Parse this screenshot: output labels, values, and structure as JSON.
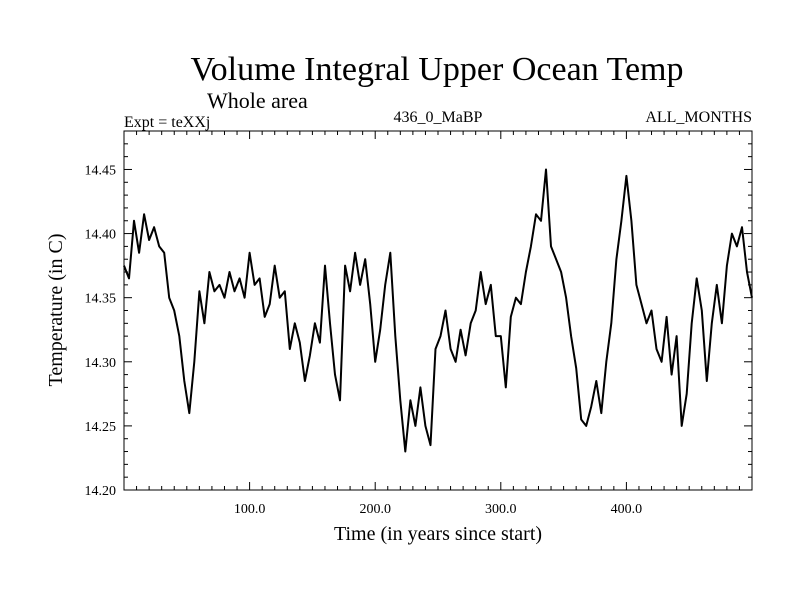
{
  "chart_data": {
    "type": "line",
    "title": "Volume Integral Upper Ocean Temp",
    "subtitle": "Whole area",
    "info_left": "Expt = teXXj",
    "info_center": "436_0_MaBP",
    "info_right": "ALL_MONTHS",
    "xlabel": "Time (in years since start)",
    "ylabel": "Temperature (in C)",
    "xlim": [
      0,
      500
    ],
    "ylim": [
      14.2,
      14.48
    ],
    "xticks": [
      100,
      200,
      300,
      400
    ],
    "xtick_labels": [
      "100.0",
      "200.0",
      "300.0",
      "400.0"
    ],
    "yticks": [
      14.2,
      14.25,
      14.3,
      14.35,
      14.4,
      14.45
    ],
    "ytick_labels": [
      "14.20",
      "14.25",
      "14.30",
      "14.35",
      "14.40",
      "14.45"
    ],
    "grid": false,
    "series": [
      {
        "name": "Volume Integral Upper Ocean Temp",
        "x": [
          0,
          4,
          8,
          12,
          16,
          20,
          24,
          28,
          32,
          36,
          40,
          44,
          48,
          52,
          56,
          60,
          64,
          68,
          72,
          76,
          80,
          84,
          88,
          92,
          96,
          100,
          104,
          108,
          112,
          116,
          120,
          124,
          128,
          132,
          136,
          140,
          144,
          148,
          152,
          156,
          160,
          164,
          168,
          172,
          176,
          180,
          184,
          188,
          192,
          196,
          200,
          204,
          208,
          212,
          216,
          220,
          224,
          228,
          232,
          236,
          240,
          244,
          248,
          252,
          256,
          260,
          264,
          268,
          272,
          276,
          280,
          284,
          288,
          292,
          296,
          300,
          304,
          308,
          312,
          316,
          320,
          324,
          328,
          332,
          336,
          340,
          344,
          348,
          352,
          356,
          360,
          364,
          368,
          372,
          376,
          380,
          384,
          388,
          392,
          396,
          400,
          404,
          408,
          412,
          416,
          420,
          424,
          428,
          432,
          436,
          440,
          444,
          448,
          452,
          456,
          460,
          464,
          468,
          472,
          476,
          480,
          484,
          488,
          492,
          496,
          500
        ],
        "values": [
          14.375,
          14.365,
          14.41,
          14.385,
          14.415,
          14.395,
          14.405,
          14.39,
          14.385,
          14.35,
          14.34,
          14.32,
          14.285,
          14.26,
          14.3,
          14.355,
          14.33,
          14.37,
          14.355,
          14.36,
          14.35,
          14.37,
          14.355,
          14.365,
          14.35,
          14.385,
          14.36,
          14.365,
          14.335,
          14.345,
          14.375,
          14.35,
          14.355,
          14.31,
          14.33,
          14.315,
          14.285,
          14.305,
          14.33,
          14.315,
          14.375,
          14.33,
          14.29,
          14.27,
          14.375,
          14.355,
          14.385,
          14.36,
          14.38,
          14.345,
          14.3,
          14.325,
          14.36,
          14.385,
          14.32,
          14.27,
          14.23,
          14.27,
          14.25,
          14.28,
          14.25,
          14.235,
          14.31,
          14.32,
          14.34,
          14.31,
          14.3,
          14.325,
          14.305,
          14.33,
          14.34,
          14.37,
          14.345,
          14.36,
          14.32,
          14.32,
          14.28,
          14.335,
          14.35,
          14.345,
          14.37,
          14.39,
          14.415,
          14.41,
          14.45,
          14.39,
          14.38,
          14.37,
          14.35,
          14.32,
          14.295,
          14.255,
          14.25,
          14.265,
          14.285,
          14.26,
          14.3,
          14.33,
          14.38,
          14.41,
          14.445,
          14.41,
          14.36,
          14.345,
          14.33,
          14.34,
          14.31,
          14.3,
          14.335,
          14.29,
          14.32,
          14.25,
          14.275,
          14.33,
          14.365,
          14.34,
          14.285,
          14.33,
          14.36,
          14.33,
          14.375,
          14.4,
          14.39,
          14.405,
          14.37,
          14.35
        ]
      }
    ]
  }
}
